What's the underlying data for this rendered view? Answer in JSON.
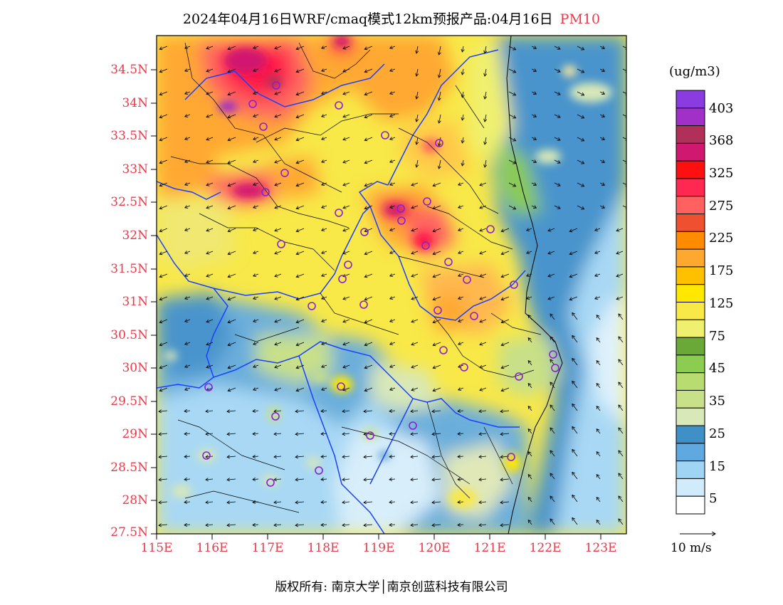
{
  "title": {
    "main": "2024年04月16日WRF/cmaq模式12km预报产品:04月16日",
    "variable": "PM10"
  },
  "axes": {
    "lat_labels": [
      "34.5N",
      "34N",
      "33.5N",
      "33N",
      "32.5N",
      "32N",
      "31.5N",
      "31N",
      "30.5N",
      "30N",
      "29.5N",
      "29N",
      "28.5N",
      "28N",
      "27.5N"
    ],
    "lon_labels": [
      "115E",
      "116E",
      "117E",
      "118E",
      "119E",
      "120E",
      "121E",
      "122E",
      "123E"
    ]
  },
  "colorbar": {
    "units": "(ug/m3)",
    "colors": [
      "#8a3ce0",
      "#a030c8",
      "#b0305a",
      "#d01870",
      "#ff1010",
      "#ff2850",
      "#ff6060",
      "#ee5030",
      "#ff8c00",
      "#ffa830",
      "#ffc000",
      "#ffe800",
      "#f8e848",
      "#f0f070",
      "#6aa838",
      "#8ccc50",
      "#b8dc70",
      "#c8e088",
      "#d8e8b8",
      "#4090c8",
      "#60a8e0",
      "#a0d4f4",
      "#d0ecfc",
      "#ffffff"
    ],
    "labels": [
      "403",
      "368",
      "325",
      "275",
      "225",
      "175",
      "125",
      "75",
      "45",
      "35",
      "25",
      "15",
      "5"
    ]
  },
  "wind_scale": {
    "label": "10 m/s"
  },
  "copyright": "版权所有: 南京大学│南京创蓝科技有限公司"
}
